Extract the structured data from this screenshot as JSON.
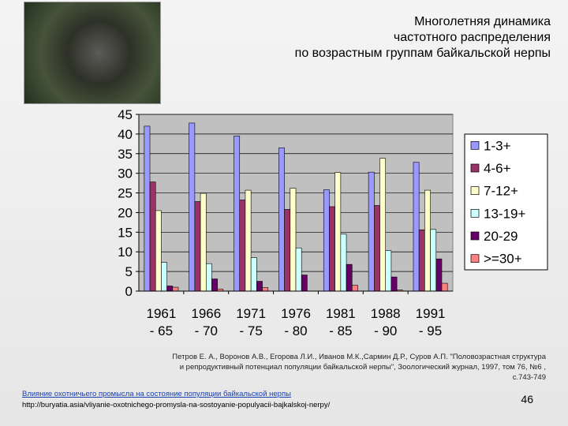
{
  "title_lines": [
    "Многолетняя динамика",
    "частотного распределения",
    "по возрастным группам байкальской нерпы"
  ],
  "citation": "Петров Е. А., Воронов А.В., Егорова Л.И., Иванов М.К.,Сармин Д.Р., Суров А.П. \"Половозрастная структура и репродуктивный потенциал популяции байкальской нерпы\", Зоологический журнал, 1997, том 76, №6 , с.743-749",
  "link_text": "Влияние охотничьего промысла на состояние популяции байкальской нерпы",
  "url_text": "http://buryatia.asia/vliyanie-oxotnichego-promysla-na-sostoyanie-populyacii-bajkalskoj-nerpy/",
  "page_number": "46",
  "chart_data": {
    "type": "bar",
    "categories": [
      [
        "1961",
        "- 65"
      ],
      [
        "1966",
        "- 70"
      ],
      [
        "1971",
        "- 75"
      ],
      [
        "1976",
        "- 80"
      ],
      [
        "1981",
        "- 85"
      ],
      [
        "1988",
        "- 90"
      ],
      [
        "1991",
        "- 95"
      ]
    ],
    "ylim": [
      0,
      45
    ],
    "yticks": [
      0,
      5,
      10,
      15,
      20,
      25,
      30,
      35,
      40,
      45
    ],
    "grid": true,
    "legend_position": "right",
    "series": [
      {
        "name": "1-3+",
        "color": "#9999ff",
        "values": [
          42,
          42.8,
          39.5,
          36.5,
          25.8,
          30.3,
          32.8
        ]
      },
      {
        "name": "4-6+",
        "color": "#993366",
        "values": [
          27.8,
          22.8,
          23.2,
          20.8,
          21.5,
          21.8,
          15.6
        ]
      },
      {
        "name": "7-12+",
        "color": "#ffffcc",
        "values": [
          20.5,
          24.9,
          25.7,
          26.2,
          30.2,
          33.8,
          25.7
        ]
      },
      {
        "name": "13-19+",
        "color": "#ccffff",
        "values": [
          7.3,
          7,
          8.5,
          11,
          14.5,
          10.3,
          15.7
        ]
      },
      {
        "name": "20-29",
        "color": "#660066",
        "values": [
          1.3,
          3.1,
          2.5,
          4.1,
          6.8,
          3.6,
          8.2
        ]
      },
      {
        "name": ">=30+",
        "color": "#ff8080",
        "values": [
          1,
          0.5,
          0.9,
          0,
          1.5,
          0.3,
          2
        ]
      }
    ]
  }
}
